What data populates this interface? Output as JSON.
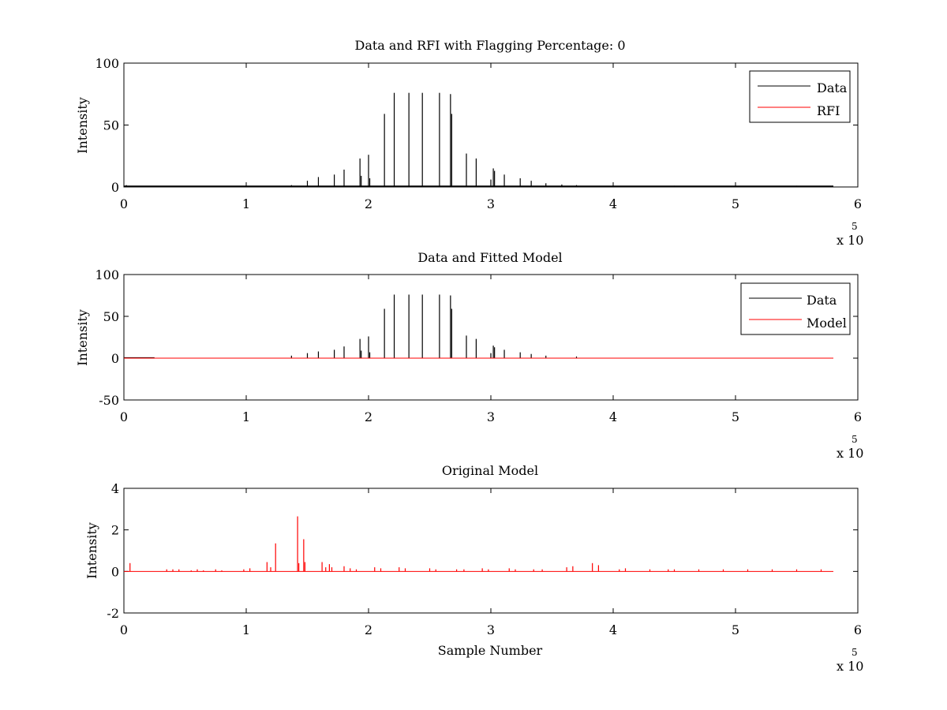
{
  "colors": {
    "data": "#000000",
    "rfi": "#ff0000",
    "model": "#ff0000",
    "axes": "#000000"
  },
  "chart_data": [
    {
      "type": "line",
      "title": "Data and RFI with Flagging Percentage: 0",
      "ylabel": "Intensity",
      "xlabel": "",
      "xlim": [
        0,
        6
      ],
      "ylim": [
        0,
        100
      ],
      "xticks": [
        "0",
        "1",
        "2",
        "3",
        "4",
        "5",
        "6"
      ],
      "yticks": [
        "0",
        "50",
        "100"
      ],
      "xticks_values": [
        0,
        1,
        2,
        3,
        4,
        5,
        6
      ],
      "yticks_values": [
        0,
        50,
        100
      ],
      "x_exponent": "x 10",
      "x_exponent_power": "5",
      "legend": {
        "position": "top-right",
        "entries": [
          "Data",
          "RFI"
        ]
      },
      "series": [
        {
          "name": "Data",
          "color": "#000000",
          "x": [
            0.02,
            0.5,
            1.0,
            1.37,
            1.5,
            1.59,
            1.72,
            1.8,
            1.93,
            1.94,
            2.0,
            2.01,
            2.13,
            2.21,
            2.33,
            2.44,
            2.58,
            2.67,
            2.68,
            2.8,
            2.88,
            3.0,
            3.02,
            3.03,
            3.11,
            3.24,
            3.33,
            3.45,
            3.58,
            3.7,
            4.0,
            4.5,
            5.0,
            5.5
          ],
          "y": [
            1.5,
            0.8,
            1.0,
            1.5,
            5,
            8,
            10,
            14,
            23,
            9,
            26,
            7,
            59,
            76,
            76,
            76,
            76,
            75,
            59,
            27,
            23,
            6,
            15,
            13,
            10,
            7,
            5,
            3,
            2,
            1.5,
            1,
            1,
            1,
            1
          ]
        },
        {
          "name": "RFI",
          "color": "#ff0000",
          "x": [],
          "y": []
        }
      ]
    },
    {
      "type": "line",
      "title": "Data and Fitted Model",
      "ylabel": "Intensity",
      "xlabel": "",
      "xlim": [
        0,
        6
      ],
      "ylim": [
        -50,
        100
      ],
      "xticks": [
        "0",
        "1",
        "2",
        "3",
        "4",
        "5",
        "6"
      ],
      "yticks": [
        "-50",
        "0",
        "50",
        "100"
      ],
      "xticks_values": [
        0,
        1,
        2,
        3,
        4,
        5,
        6
      ],
      "yticks_values": [
        -50,
        0,
        50,
        100
      ],
      "x_exponent": "x 10",
      "x_exponent_power": "5",
      "legend": {
        "position": "top-right",
        "entries": [
          "Data",
          "Model"
        ]
      },
      "series": [
        {
          "name": "Data",
          "color": "#000000",
          "x": [
            1.37,
            1.5,
            1.59,
            1.72,
            1.8,
            1.93,
            1.94,
            2.0,
            2.01,
            2.13,
            2.21,
            2.33,
            2.44,
            2.58,
            2.67,
            2.68,
            2.8,
            2.88,
            3.0,
            3.02,
            3.03,
            3.11,
            3.24,
            3.33,
            3.45,
            3.7
          ],
          "y": [
            3,
            6,
            8,
            10,
            14,
            23,
            9,
            26,
            7,
            59,
            76,
            76,
            76,
            76,
            75,
            59,
            27,
            23,
            6,
            15,
            13,
            10,
            7,
            5,
            3,
            2
          ]
        },
        {
          "name": "Model",
          "color": "#ff0000",
          "x": [
            0,
            5.8
          ],
          "y": [
            0,
            0
          ]
        }
      ]
    },
    {
      "type": "line",
      "title": "Original Model",
      "ylabel": "Intensity",
      "xlabel": "Sample Number",
      "xlim": [
        0,
        6
      ],
      "ylim": [
        -2,
        4
      ],
      "xticks": [
        "0",
        "1",
        "2",
        "3",
        "4",
        "5",
        "6"
      ],
      "yticks": [
        "-2",
        "0",
        "2",
        "4"
      ],
      "xticks_values": [
        0,
        1,
        2,
        3,
        4,
        5,
        6
      ],
      "yticks_values": [
        -2,
        0,
        2,
        4
      ],
      "x_exponent": "x 10",
      "x_exponent_power": "5",
      "legend": null,
      "series": [
        {
          "name": "",
          "color": "#ff0000",
          "x": [
            0.05,
            0.35,
            0.4,
            0.45,
            0.55,
            0.6,
            0.65,
            0.75,
            0.8,
            0.98,
            1.03,
            1.17,
            1.2,
            1.24,
            1.42,
            1.43,
            1.47,
            1.48,
            1.62,
            1.65,
            1.68,
            1.7,
            1.8,
            1.85,
            1.9,
            2.05,
            2.1,
            2.25,
            2.3,
            2.5,
            2.55,
            2.72,
            2.78,
            2.93,
            2.98,
            3.15,
            3.2,
            3.35,
            3.42,
            3.62,
            3.67,
            3.83,
            3.88,
            4.05,
            4.1,
            4.3,
            4.45,
            4.5,
            4.7,
            4.9,
            5.1,
            5.3,
            5.5,
            5.7
          ],
          "y": [
            0.4,
            0.1,
            0.1,
            0.1,
            0.05,
            0.1,
            0.05,
            0.1,
            0.05,
            0.1,
            0.15,
            0.45,
            0.2,
            1.35,
            2.65,
            0.4,
            1.55,
            0.45,
            0.45,
            0.2,
            0.35,
            0.2,
            0.25,
            0.15,
            0.1,
            0.2,
            0.15,
            0.2,
            0.15,
            0.15,
            0.1,
            0.1,
            0.1,
            0.15,
            0.1,
            0.15,
            0.1,
            0.1,
            0.1,
            0.2,
            0.25,
            0.4,
            0.3,
            0.1,
            0.15,
            0.1,
            0.1,
            0.1,
            0.1,
            0.1,
            0.1,
            0.1,
            0.1,
            0.1
          ]
        }
      ]
    }
  ]
}
